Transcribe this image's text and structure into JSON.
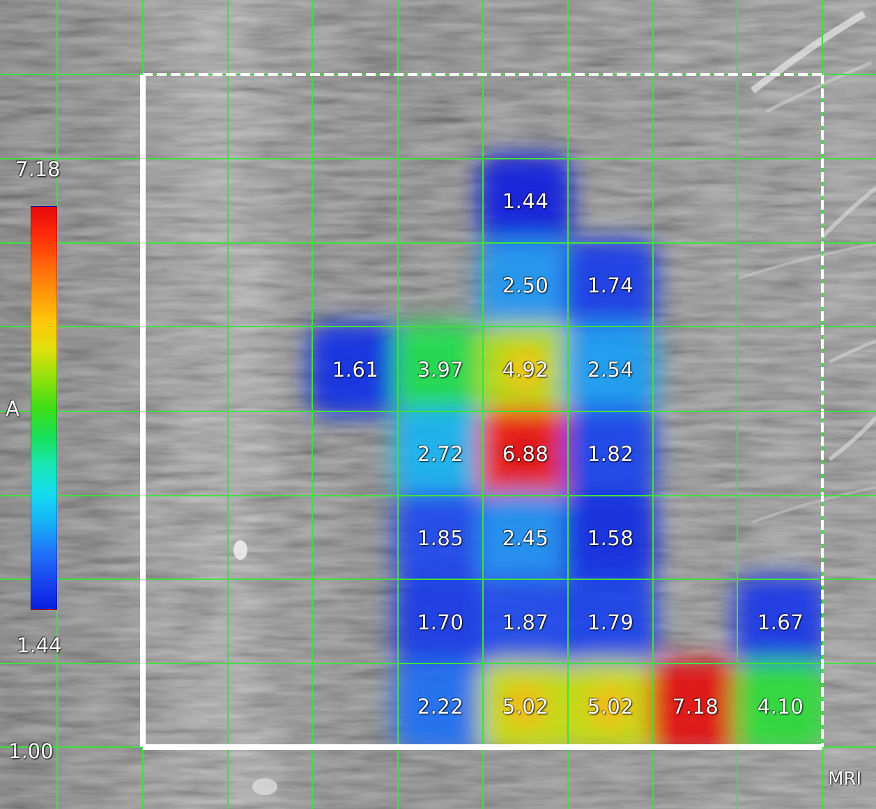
{
  "image": {
    "modality_label": "MRI",
    "side_label": "A",
    "colors": {
      "grid_line": "#3fe03f",
      "roi_border": "#ffffff",
      "value_text": "#ffffff"
    }
  },
  "scale": {
    "top_label": "7.18",
    "bottom_label": "1.44",
    "min_label": "1.00",
    "colormap": [
      "#0a1ee0",
      "#1a46f0",
      "#1f74f8",
      "#16b0f5",
      "#14dcf0",
      "#18e6b4",
      "#19e05a",
      "#3ddc14",
      "#8ee00e",
      "#dde00c",
      "#ffc80a",
      "#ff960a",
      "#ff640a",
      "#ff2a0a",
      "#e60a0a"
    ]
  },
  "values": [
    {
      "row": 0,
      "col": 4,
      "label": "1.44"
    },
    {
      "row": 1,
      "col": 4,
      "label": "2.50"
    },
    {
      "row": 1,
      "col": 5,
      "label": "1.74"
    },
    {
      "row": 2,
      "col": 2,
      "label": "1.61"
    },
    {
      "row": 2,
      "col": 3,
      "label": "3.97"
    },
    {
      "row": 2,
      "col": 4,
      "label": "4.92"
    },
    {
      "row": 2,
      "col": 5,
      "label": "2.54"
    },
    {
      "row": 3,
      "col": 3,
      "label": "2.72"
    },
    {
      "row": 3,
      "col": 4,
      "label": "6.88"
    },
    {
      "row": 3,
      "col": 5,
      "label": "1.82"
    },
    {
      "row": 4,
      "col": 3,
      "label": "1.85"
    },
    {
      "row": 4,
      "col": 4,
      "label": "2.45"
    },
    {
      "row": 4,
      "col": 5,
      "label": "1.58"
    },
    {
      "row": 5,
      "col": 3,
      "label": "1.70"
    },
    {
      "row": 5,
      "col": 4,
      "label": "1.87"
    },
    {
      "row": 5,
      "col": 5,
      "label": "1.79"
    },
    {
      "row": 5,
      "col": 7,
      "label": "1.67"
    },
    {
      "row": 6,
      "col": 3,
      "label": "2.22"
    },
    {
      "row": 6,
      "col": 4,
      "label": "5.02"
    },
    {
      "row": 6,
      "col": 5,
      "label": "5.02"
    },
    {
      "row": 6,
      "col": 6,
      "label": "7.18"
    },
    {
      "row": 6,
      "col": 7,
      "label": "4.10"
    }
  ]
}
